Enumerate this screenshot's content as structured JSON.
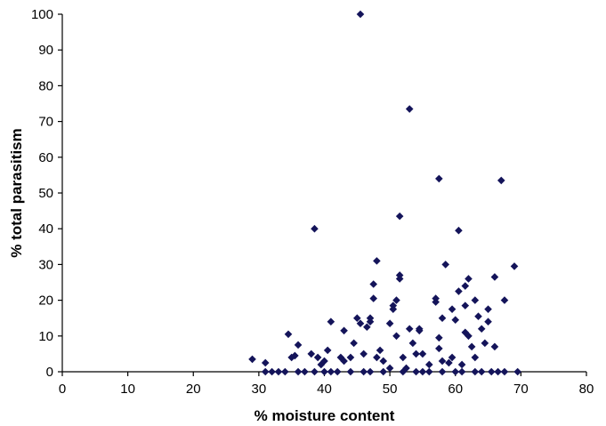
{
  "chart_data": {
    "type": "scatter",
    "title": "",
    "xlabel": "% moisture content",
    "ylabel": "% total parasitism",
    "xlim": [
      0,
      80
    ],
    "ylim": [
      0,
      100
    ],
    "x_ticks": [
      "0",
      "10",
      "20",
      "30",
      "40",
      "50",
      "60",
      "70",
      "80"
    ],
    "y_ticks": [
      "0",
      "10",
      "20",
      "30",
      "40",
      "50",
      "60",
      "70",
      "80",
      "90",
      "100"
    ],
    "grid": false,
    "legend": "none",
    "marker": "diamond",
    "marker_color": "#14145a",
    "series": [
      {
        "points": [
          [
            29,
            3.5
          ],
          [
            31,
            2.5
          ],
          [
            31,
            0
          ],
          [
            32,
            0
          ],
          [
            33,
            0
          ],
          [
            34,
            0
          ],
          [
            34.5,
            10.5
          ],
          [
            35,
            4
          ],
          [
            35.5,
            4.5
          ],
          [
            36,
            7.5
          ],
          [
            36,
            0
          ],
          [
            37,
            0
          ],
          [
            38,
            5
          ],
          [
            38.5,
            40
          ],
          [
            38.5,
            0
          ],
          [
            39,
            4
          ],
          [
            39.5,
            2
          ],
          [
            40,
            3
          ],
          [
            40,
            0
          ],
          [
            40.5,
            6
          ],
          [
            41,
            14
          ],
          [
            41,
            0
          ],
          [
            42,
            0
          ],
          [
            42.5,
            4
          ],
          [
            43,
            11.5
          ],
          [
            43,
            3
          ],
          [
            44,
            4
          ],
          [
            44,
            0
          ],
          [
            44.5,
            8
          ],
          [
            45,
            15
          ],
          [
            45.5,
            100
          ],
          [
            45.5,
            13.5
          ],
          [
            46,
            5
          ],
          [
            46,
            0
          ],
          [
            46.5,
            12.5
          ],
          [
            47,
            15
          ],
          [
            47,
            14
          ],
          [
            47,
            0
          ],
          [
            47.5,
            20.5
          ],
          [
            47.5,
            24.5
          ],
          [
            48,
            31
          ],
          [
            48,
            4
          ],
          [
            48.5,
            6
          ],
          [
            49,
            3
          ],
          [
            49,
            0
          ],
          [
            50,
            1
          ],
          [
            50,
            13.5
          ],
          [
            50.5,
            18.5
          ],
          [
            50.5,
            17.5
          ],
          [
            51,
            20
          ],
          [
            51,
            10
          ],
          [
            51.5,
            43.5
          ],
          [
            51.5,
            27
          ],
          [
            51.5,
            26
          ],
          [
            52,
            0
          ],
          [
            52,
            4
          ],
          [
            52.5,
            1
          ],
          [
            53,
            73.5
          ],
          [
            53,
            12
          ],
          [
            53.5,
            8
          ],
          [
            54,
            0
          ],
          [
            54,
            5
          ],
          [
            54.5,
            11.5
          ],
          [
            54.5,
            12
          ],
          [
            55,
            0
          ],
          [
            55,
            5
          ],
          [
            56,
            2
          ],
          [
            56,
            0
          ],
          [
            57,
            19.5
          ],
          [
            57,
            20.5
          ],
          [
            57.5,
            54
          ],
          [
            57.5,
            9.5
          ],
          [
            57.5,
            6.5
          ],
          [
            58,
            15
          ],
          [
            58,
            3
          ],
          [
            58,
            0
          ],
          [
            58.5,
            30
          ],
          [
            59,
            2.5
          ],
          [
            59.5,
            4
          ],
          [
            59.5,
            17.5
          ],
          [
            60,
            0
          ],
          [
            60,
            14.5
          ],
          [
            60.5,
            22.5
          ],
          [
            60.5,
            39.5
          ],
          [
            61,
            2
          ],
          [
            61,
            0
          ],
          [
            61.5,
            24
          ],
          [
            61.5,
            18.5
          ],
          [
            61.5,
            11
          ],
          [
            62,
            26
          ],
          [
            62,
            10
          ],
          [
            62.5,
            7
          ],
          [
            63,
            0
          ],
          [
            63,
            20
          ],
          [
            63,
            4
          ],
          [
            63.5,
            15.5
          ],
          [
            64,
            12
          ],
          [
            64,
            0
          ],
          [
            64.5,
            8
          ],
          [
            65,
            17.5
          ],
          [
            65,
            14
          ],
          [
            65.5,
            0
          ],
          [
            66,
            26.5
          ],
          [
            66,
            7
          ],
          [
            66.5,
            0
          ],
          [
            67,
            53.5
          ],
          [
            67.5,
            20
          ],
          [
            67.5,
            0
          ],
          [
            69,
            29.5
          ],
          [
            69.5,
            0
          ]
        ]
      }
    ]
  }
}
